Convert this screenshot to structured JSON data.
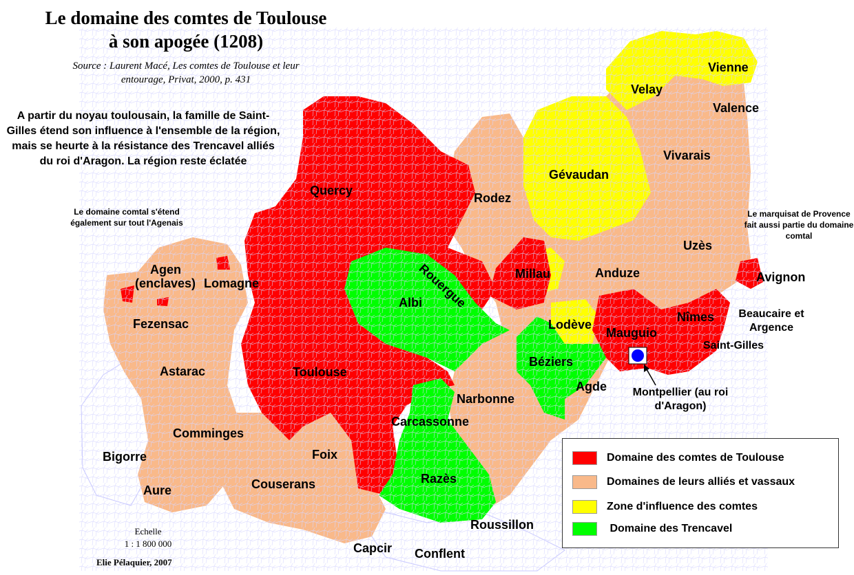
{
  "title": {
    "line1": "Le domaine des comtes de Toulouse",
    "line2": "à son apogée (1208)"
  },
  "source": {
    "line1": "Source : Laurent Macé, Les comtes de Toulouse et leur",
    "line2": "entourage, Privat, 2000, p. 431"
  },
  "intro_text": "A partir du noyau toulousain, la famille de Saint-Gilles étend son influence à l'ensemble de la région, mais se heurte à la résistance des Trencavel alliés du roi d'Aragon. La région reste éclatée",
  "notes": {
    "agenais": "Le domaine comtal s'étend également sur tout l'Agenais",
    "provence": "Le marquisat de Provence fait aussi partie du domaine comtal",
    "montpellier": "Montpellier (au roi d'Aragon)"
  },
  "regions": {
    "vienne": "Vienne",
    "velay": "Velay",
    "valence": "Valence",
    "vivarais": "Vivarais",
    "gevaudan": "Gévaudan",
    "quercy": "Quercy",
    "rodez": "Rodez",
    "uzes": "Uzès",
    "rouergue": "Rouergue",
    "agen": "Agen",
    "enclaves": "(enclaves)",
    "lomagne": "Lomagne",
    "millau": "Millau",
    "anduze": "Anduze",
    "avignon": "Avignon",
    "albi": "Albi",
    "beaucaire": "Beaucaire et Argence",
    "nimes": "Nîmes",
    "fezensac": "Fezensac",
    "lodeve": "Lodève",
    "mauguio": "Mauguio",
    "saint_gilles": "Saint-Gilles",
    "beziers": "Béziers",
    "astarac": "Astarac",
    "toulouse": "Toulouse",
    "agde": "Agde",
    "narbonne": "Narbonne",
    "carcassonne": "Carcassonne",
    "comminges": "Comminges",
    "foix": "Foix",
    "bigorre": "Bigorre",
    "razes": "Razès",
    "couserans": "Couserans",
    "aure": "Aure",
    "roussillon": "Roussillon",
    "capcir": "Capcir",
    "conflent": "Conflent"
  },
  "scale": {
    "label": "Echelle",
    "value": "1 : 1 800 000"
  },
  "author": "Elie Pélaquier, 2007",
  "legend": [
    {
      "label": "Domaine des comtes de Toulouse",
      "color": "#ff0000"
    },
    {
      "label": "Domaines de leurs alliés et vassaux",
      "color": "#f9b98a"
    },
    {
      "label": "Zone d'influence des comtes",
      "color": "#ffff00"
    },
    {
      "label": " Domaine des Trencavel",
      "color": "#00ff00"
    }
  ],
  "colors": {
    "toulouse_domain": "#ff0000",
    "allies": "#f9b98a",
    "influence": "#ffff00",
    "trencavel": "#00ff00",
    "unclaimed": "#ffffff",
    "commune_borders": "#c8c8ff",
    "montpellier_marker": "#0000ff"
  }
}
